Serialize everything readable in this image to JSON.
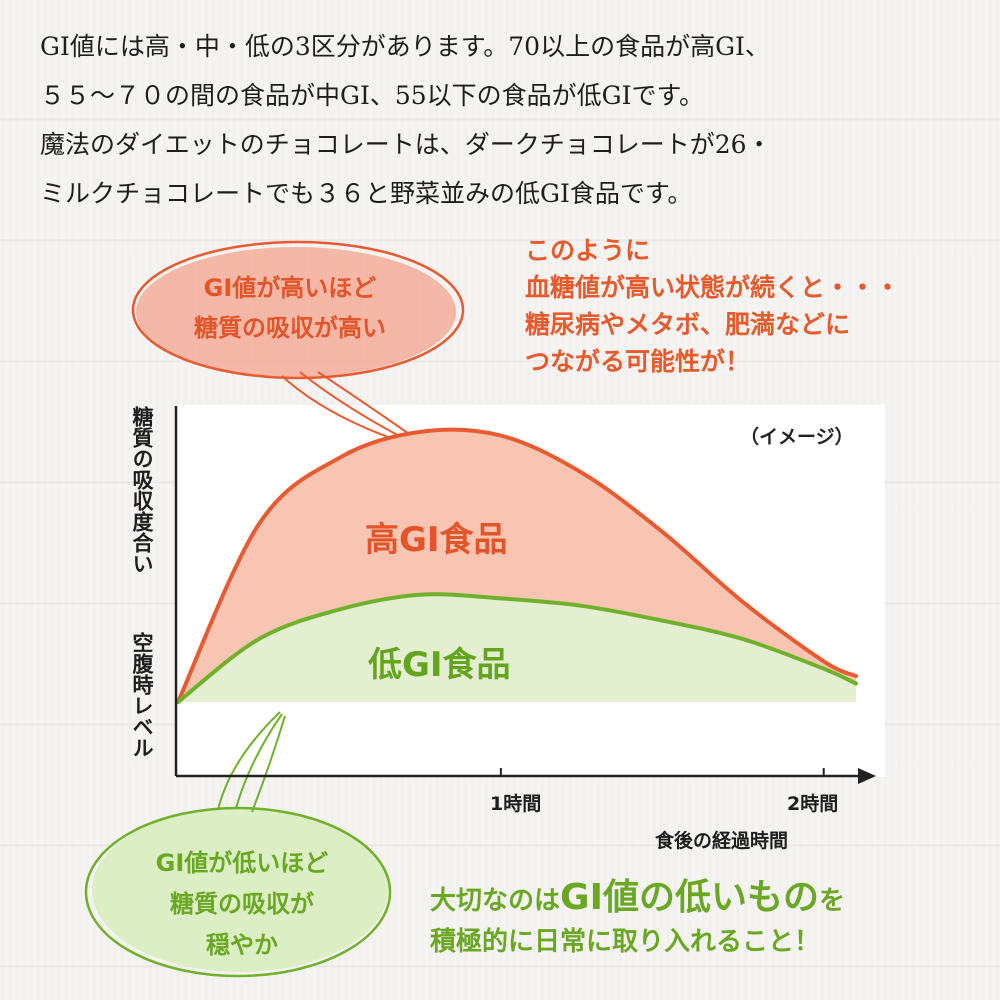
{
  "intro": {
    "lines": [
      "GI値には高・中・低の3区分があります。70以上の食品が高GI、",
      "５５～７０の間の食品が中GI、55以下の食品が低GIです。",
      "魔法のダイエットのチョコレートは、ダークチョコレートが26・",
      "ミルクチョコレートでも３６と野菜並みの低GI食品です。"
    ]
  },
  "callout": {
    "lines": [
      "このように",
      "血糖値が高い状態が続くと・・・",
      "糖尿病やメタボ、肥満などに",
      "つながる可能性が！"
    ]
  },
  "bubble_high": {
    "lines": [
      "GI値が高いほど",
      "糖質の吸収が高い"
    ]
  },
  "bubble_low": {
    "lines": [
      "GI値が低いほど",
      "糖質の吸収が",
      "穏やか"
    ]
  },
  "bottom": {
    "pre": "大切なのは",
    "emphasis": "GI値の低いもの",
    "post": "を",
    "line2": "積極的に日常に取り入れること！"
  },
  "colors": {
    "high_line": "#e95a31",
    "high_fill": "#f8c5b3",
    "low_line": "#6fb12a",
    "low_fill": "#e3efd0",
    "bubble_high_fill": "#f4ad9a",
    "bubble_low_fill": "#dceec3"
  },
  "chart_data": {
    "type": "area",
    "note": "（イメージ）",
    "ylabel_top": "糖質の吸収度合い",
    "ylabel_bottom": "空腹時レベル",
    "xlabel": "食後の経過時間",
    "x_ticks": [
      "1時間",
      "2時間"
    ],
    "x_tick_values": [
      1,
      2
    ],
    "xlim": [
      0,
      2.1
    ],
    "ylim": [
      0,
      1
    ],
    "baseline": 0.2,
    "series": [
      {
        "name": "高GI食品",
        "x": [
          0,
          0.25,
          0.5,
          0.75,
          1.0,
          1.25,
          1.5,
          1.75,
          2.0,
          2.1
        ],
        "y": [
          0.2,
          0.68,
          0.86,
          0.93,
          0.92,
          0.82,
          0.66,
          0.47,
          0.31,
          0.27
        ]
      },
      {
        "name": "低GI食品",
        "x": [
          0,
          0.25,
          0.5,
          0.75,
          1.0,
          1.25,
          1.5,
          1.75,
          2.0,
          2.1
        ],
        "y": [
          0.2,
          0.37,
          0.45,
          0.49,
          0.48,
          0.46,
          0.42,
          0.37,
          0.29,
          0.25
        ]
      }
    ]
  }
}
